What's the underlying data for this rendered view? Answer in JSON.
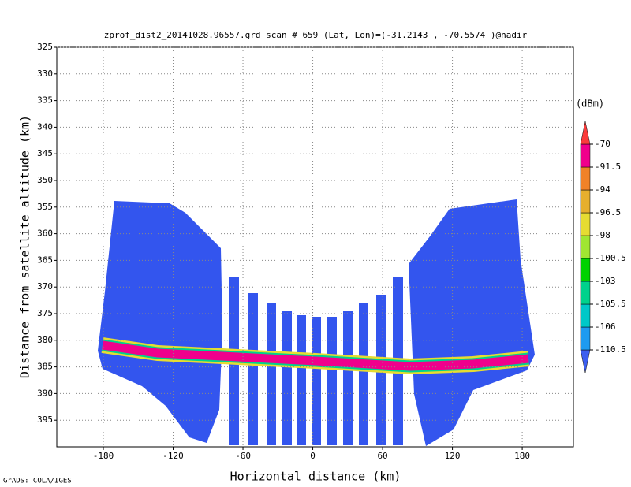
{
  "chart_data": {
    "type": "heatmap",
    "title": "zprof_dist2_20141028.96557.grd  scan # 659  (Lat, Lon)=(-31.2143 , -70.5574 )@nadir",
    "xlabel": "Horizontal distance (km)",
    "ylabel": "Distance from satellite altitude (km)",
    "xlim": [
      -220,
      224
    ],
    "xticks": [
      -180,
      -120,
      -60,
      0,
      60,
      120,
      180
    ],
    "ylim": [
      325,
      400
    ],
    "invert_y": true,
    "yticks": [
      325,
      330,
      335,
      340,
      345,
      350,
      355,
      360,
      365,
      370,
      375,
      380,
      385,
      390,
      395
    ],
    "grid": true,
    "colorbar": {
      "title": "(dBm)",
      "levels": [
        -110.5,
        -106,
        -105.5,
        -103,
        -100.5,
        -98,
        -96.5,
        -94,
        -91.5,
        -70
      ],
      "colors": [
        "#3c5ef0",
        "#1e9bf0",
        "#00c8c8",
        "#00d28c",
        "#00d200",
        "#a0e632",
        "#e6dc32",
        "#e6af2d",
        "#f08228",
        "#f0008c",
        "#fa3c3c"
      ]
    },
    "footer": "GrADS: COLA/IGES"
  }
}
